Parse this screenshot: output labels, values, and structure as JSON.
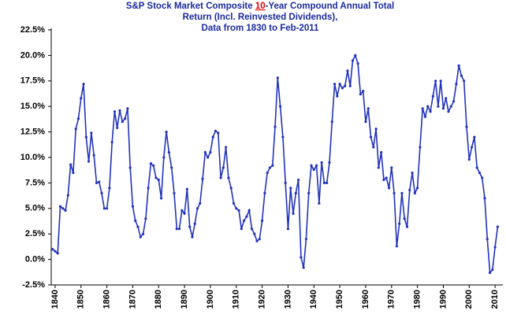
{
  "chart_data": {
    "type": "line",
    "title_lines": [
      [
        "S&P Stock Market Composite ",
        "10",
        "-Year Compound Annual Total"
      ],
      [
        "Return (Incl. Reinvested Dividends),"
      ],
      [
        "Data from 1830 to Feb-2011"
      ]
    ],
    "x": [
      1839,
      1840,
      1841,
      1842,
      1843,
      1844,
      1845,
      1846,
      1847,
      1848,
      1849,
      1850,
      1851,
      1852,
      1853,
      1854,
      1855,
      1856,
      1857,
      1858,
      1859,
      1860,
      1861,
      1862,
      1863,
      1864,
      1865,
      1866,
      1867,
      1868,
      1869,
      1870,
      1871,
      1872,
      1873,
      1874,
      1875,
      1876,
      1877,
      1878,
      1879,
      1880,
      1881,
      1882,
      1883,
      1884,
      1885,
      1886,
      1887,
      1888,
      1889,
      1890,
      1891,
      1892,
      1893,
      1894,
      1895,
      1896,
      1897,
      1898,
      1899,
      1900,
      1901,
      1902,
      1903,
      1904,
      1905,
      1906,
      1907,
      1908,
      1909,
      1910,
      1911,
      1912,
      1913,
      1914,
      1915,
      1916,
      1917,
      1918,
      1919,
      1920,
      1921,
      1922,
      1923,
      1924,
      1925,
      1926,
      1927,
      1928,
      1929,
      1930,
      1931,
      1932,
      1933,
      1934,
      1935,
      1936,
      1937,
      1938,
      1939,
      1940,
      1941,
      1942,
      1943,
      1944,
      1945,
      1946,
      1947,
      1948,
      1949,
      1950,
      1951,
      1952,
      1953,
      1954,
      1955,
      1956,
      1957,
      1958,
      1959,
      1960,
      1961,
      1962,
      1963,
      1964,
      1965,
      1966,
      1967,
      1968,
      1969,
      1970,
      1971,
      1972,
      1973,
      1974,
      1975,
      1976,
      1977,
      1978,
      1979,
      1980,
      1981,
      1982,
      1983,
      1984,
      1985,
      1986,
      1987,
      1988,
      1989,
      1990,
      1991,
      1992,
      1993,
      1994,
      1995,
      1996,
      1997,
      1998,
      1999,
      2000,
      2001,
      2002,
      2003,
      2004,
      2005,
      2006,
      2007,
      2008,
      2009,
      2010,
      2011
    ],
    "series": [
      {
        "color": "#2233bb",
        "values": [
          1.0,
          0.8,
          0.6,
          5.2,
          5.0,
          4.8,
          6.3,
          9.3,
          8.5,
          12.8,
          13.8,
          15.8,
          17.2,
          12.0,
          9.6,
          12.4,
          10.2,
          7.5,
          7.6,
          6.5,
          5.0,
          5.0,
          7.0,
          11.5,
          14.5,
          12.9,
          14.6,
          13.5,
          13.8,
          14.8,
          9.0,
          5.2,
          3.8,
          3.2,
          2.2,
          2.5,
          4.0,
          7.0,
          9.4,
          9.2,
          8.0,
          7.8,
          6.0,
          10.0,
          12.5,
          10.5,
          9.0,
          6.5,
          3.0,
          3.0,
          4.8,
          4.5,
          6.9,
          3.2,
          2.2,
          3.5,
          5.0,
          5.5,
          7.9,
          10.5,
          10.0,
          10.5,
          12.0,
          12.6,
          12.4,
          8.0,
          9.0,
          11.0,
          8.0,
          7.0,
          5.5,
          5.0,
          4.8,
          3.0,
          3.8,
          4.2,
          4.8,
          3.0,
          2.5,
          1.8,
          2.0,
          3.8,
          6.5,
          8.5,
          9.0,
          9.2,
          13.0,
          17.8,
          15.0,
          12.0,
          7.5,
          3.0,
          7.0,
          4.5,
          6.5,
          7.8,
          0.2,
          -0.8,
          2.0,
          6.5,
          9.2,
          8.8,
          9.2,
          5.5,
          9.5,
          7.5,
          7.5,
          9.5,
          13.5,
          17.2,
          16.0,
          17.2,
          16.8,
          17.0,
          18.5,
          17.0,
          19.5,
          20.0,
          19.2,
          16.2,
          16.5,
          13.5,
          14.8,
          12.0,
          11.0,
          12.8,
          9.0,
          10.5,
          7.8,
          8.0,
          7.0,
          9.0,
          6.5,
          1.3,
          3.5,
          6.5,
          4.0,
          3.2,
          6.8,
          8.5,
          6.5,
          7.0,
          11.0,
          14.8,
          14.0,
          15.0,
          14.5,
          16.0,
          17.5,
          15.0,
          17.5,
          14.8,
          15.8,
          14.5,
          15.0,
          15.5,
          17.2,
          19.0,
          18.0,
          17.5,
          13.0,
          9.8,
          11.0,
          12.0,
          9.0,
          8.5,
          8.0,
          6.0,
          2.0,
          -1.3,
          -1.0,
          1.2,
          3.2
        ]
      }
    ],
    "xlim": [
      1838.5,
      2013
    ],
    "xticks": [
      1840,
      1850,
      1860,
      1870,
      1880,
      1890,
      1900,
      1910,
      1920,
      1930,
      1940,
      1950,
      1960,
      1970,
      1980,
      1990,
      2000,
      2010
    ],
    "ylim": [
      -2.5,
      22.5
    ],
    "yticks": [
      {
        "value": -2.5,
        "label": "-2.5%"
      },
      {
        "value": 0,
        "label": "0.0%"
      },
      {
        "value": 2.5,
        "label": "2.5%"
      },
      {
        "value": 5,
        "label": "5.0%"
      },
      {
        "value": 7.5,
        "label": "7.5%"
      },
      {
        "value": 10,
        "label": "10.0%"
      },
      {
        "value": 12.5,
        "label": "12.5%"
      },
      {
        "value": 15,
        "label": "15.0%"
      },
      {
        "value": 17.5,
        "label": "17.5%"
      },
      {
        "value": 20,
        "label": "20.0%"
      },
      {
        "value": 22.5,
        "label": "22.5%"
      }
    ],
    "grid": false
  }
}
